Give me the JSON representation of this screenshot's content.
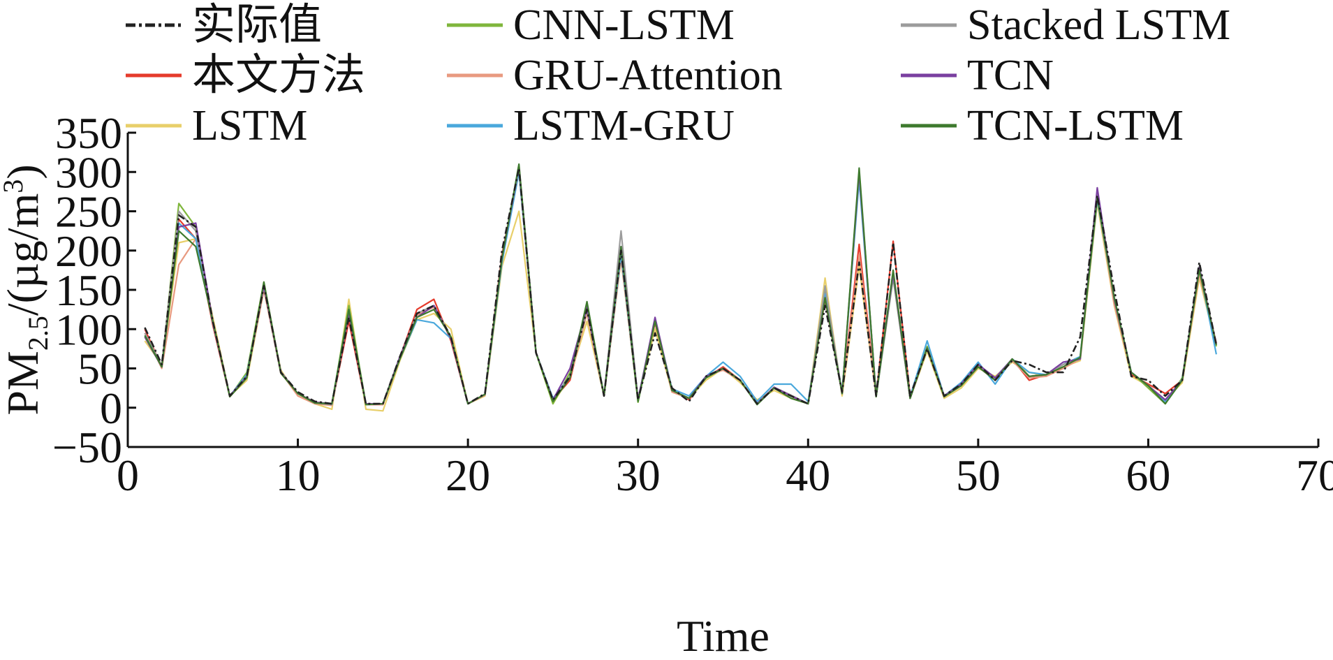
{
  "chart_data": {
    "type": "line",
    "xlabel": "Time",
    "ylabel_main": "PM",
    "ylabel_sub": "2.5",
    "ylabel_unit": "/(µg/m",
    "ylabel_sup": "3",
    "ylabel_close": ")",
    "xlim": [
      0,
      70
    ],
    "ylim": [
      -50,
      350
    ],
    "xticks": [
      0,
      10,
      20,
      30,
      40,
      50,
      60,
      70
    ],
    "xtick_labels": [
      "0",
      "10",
      "20",
      "30",
      "40",
      "50",
      "60",
      "70"
    ],
    "yticks": [
      -50,
      0,
      50,
      100,
      150,
      200,
      250,
      300,
      350
    ],
    "ytick_labels": [
      "−50",
      "0",
      "50",
      "100",
      "150",
      "200",
      "250",
      "300",
      "350"
    ],
    "grid": false,
    "legend_position": "top",
    "x": [
      1,
      2,
      3,
      4,
      5,
      6,
      7,
      8,
      9,
      10,
      11,
      12,
      13,
      14,
      15,
      16,
      17,
      18,
      19,
      20,
      21,
      22,
      23,
      24,
      25,
      26,
      27,
      28,
      29,
      30,
      31,
      32,
      33,
      34,
      35,
      36,
      37,
      38,
      39,
      40,
      41,
      42,
      43,
      44,
      45,
      46,
      47,
      48,
      49,
      50,
      51,
      52,
      53,
      54,
      55,
      56,
      57,
      58,
      59,
      60,
      61,
      62,
      63,
      64
    ],
    "series": [
      {
        "name": "实际值",
        "color": "#222222",
        "dashed": true,
        "values": [
          102,
          55,
          245,
          230,
          110,
          15,
          40,
          155,
          45,
          20,
          8,
          5,
          115,
          5,
          5,
          65,
          120,
          130,
          90,
          5,
          18,
          200,
          305,
          70,
          10,
          40,
          125,
          15,
          200,
          10,
          95,
          25,
          8,
          40,
          50,
          35,
          5,
          25,
          15,
          5,
          130,
          20,
          185,
          15,
          210,
          15,
          75,
          15,
          30,
          55,
          35,
          60,
          55,
          45,
          45,
          90,
          270,
          150,
          40,
          35,
          15,
          35,
          185,
          80
        ]
      },
      {
        "name": "本文方法",
        "color": "#e53b2c",
        "values": [
          100,
          52,
          240,
          215,
          105,
          14,
          40,
          152,
          44,
          18,
          6,
          4,
          110,
          4,
          4,
          64,
          125,
          138,
          85,
          5,
          17,
          195,
          302,
          70,
          10,
          35,
          122,
          15,
          192,
          10,
          108,
          22,
          10,
          38,
          52,
          35,
          5,
          26,
          15,
          5,
          138,
          18,
          208,
          15,
          212,
          15,
          75,
          15,
          28,
          52,
          35,
          62,
          35,
          42,
          55,
          62,
          265,
          140,
          42,
          30,
          18,
          35,
          175,
          82
        ]
      },
      {
        "name": "LSTM",
        "color": "#e8cf6a",
        "values": [
          85,
          55,
          210,
          215,
          115,
          15,
          35,
          150,
          48,
          15,
          5,
          -2,
          138,
          -2,
          -4,
          60,
          112,
          120,
          100,
          5,
          15,
          180,
          250,
          70,
          5,
          40,
          110,
          15,
          188,
          10,
          100,
          20,
          12,
          35,
          50,
          32,
          10,
          22,
          12,
          5,
          165,
          15,
          180,
          15,
          170,
          12,
          72,
          12,
          25,
          50,
          40,
          58,
          45,
          40,
          52,
          60,
          260,
          130,
          40,
          28,
          10,
          32,
          165,
          78
        ]
      },
      {
        "name": "CNN-LSTM",
        "color": "#7fb63c",
        "values": [
          90,
          52,
          260,
          230,
          110,
          14,
          45,
          160,
          45,
          18,
          7,
          5,
          130,
          5,
          5,
          65,
          115,
          130,
          90,
          5,
          17,
          190,
          308,
          70,
          5,
          45,
          130,
          15,
          195,
          7,
          110,
          22,
          12,
          38,
          50,
          35,
          5,
          25,
          15,
          5,
          150,
          18,
          295,
          14,
          165,
          12,
          78,
          15,
          30,
          55,
          35,
          62,
          40,
          42,
          55,
          65,
          270,
          138,
          45,
          25,
          5,
          38,
          175,
          78
        ]
      },
      {
        "name": "GRU-Attention",
        "color": "#e89a80",
        "values": [
          95,
          50,
          182,
          215,
          110,
          15,
          40,
          150,
          45,
          15,
          5,
          3,
          120,
          4,
          4,
          62,
          118,
          128,
          90,
          5,
          16,
          188,
          300,
          70,
          10,
          38,
          120,
          15,
          190,
          10,
          110,
          20,
          12,
          40,
          48,
          35,
          5,
          25,
          15,
          5,
          140,
          18,
          195,
          15,
          170,
          12,
          76,
          14,
          28,
          52,
          38,
          60,
          38,
          40,
          50,
          62,
          268,
          132,
          45,
          28,
          10,
          35,
          170,
          80
        ]
      },
      {
        "name": "LSTM-GRU",
        "color": "#4aa8dc",
        "values": [
          92,
          52,
          235,
          215,
          108,
          15,
          42,
          155,
          45,
          18,
          6,
          5,
          125,
          4,
          5,
          62,
          112,
          108,
          88,
          5,
          17,
          185,
          300,
          70,
          12,
          40,
          128,
          16,
          195,
          10,
          112,
          24,
          15,
          40,
          58,
          40,
          8,
          30,
          30,
          8,
          145,
          20,
          290,
          15,
          168,
          14,
          85,
          15,
          32,
          58,
          30,
          62,
          45,
          42,
          55,
          65,
          265,
          140,
          45,
          28,
          8,
          36,
          178,
          68
        ]
      },
      {
        "name": "Stacked LSTM",
        "color": "#9c9c9c",
        "values": [
          95,
          54,
          250,
          225,
          110,
          14,
          38,
          155,
          46,
          18,
          6,
          4,
          122,
          4,
          5,
          62,
          120,
          130,
          90,
          5,
          17,
          192,
          305,
          70,
          10,
          40,
          125,
          15,
          225,
          10,
          112,
          22,
          12,
          38,
          50,
          35,
          5,
          26,
          16,
          5,
          155,
          18,
          300,
          15,
          168,
          12,
          76,
          15,
          30,
          55,
          38,
          62,
          40,
          42,
          55,
          62,
          272,
          138,
          45,
          28,
          10,
          35,
          180,
          80
        ]
      },
      {
        "name": "TCN",
        "color": "#7a3fa0",
        "values": [
          90,
          52,
          230,
          235,
          110,
          15,
          40,
          155,
          45,
          18,
          7,
          5,
          120,
          5,
          5,
          65,
          115,
          130,
          88,
          5,
          17,
          190,
          308,
          70,
          10,
          50,
          128,
          15,
          205,
          10,
          115,
          22,
          12,
          40,
          50,
          35,
          5,
          26,
          15,
          5,
          140,
          18,
          300,
          15,
          170,
          12,
          76,
          15,
          30,
          55,
          38,
          62,
          40,
          42,
          58,
          62,
          280,
          138,
          45,
          28,
          10,
          35,
          178,
          80
        ]
      },
      {
        "name": "TCN-LSTM",
        "color": "#3e7a2e",
        "values": [
          92,
          52,
          225,
          205,
          110,
          14,
          38,
          160,
          44,
          18,
          6,
          5,
          125,
          4,
          5,
          62,
          115,
          125,
          90,
          5,
          17,
          190,
          310,
          70,
          8,
          38,
          135,
          15,
          205,
          8,
          110,
          22,
          12,
          38,
          50,
          35,
          4,
          25,
          12,
          5,
          140,
          18,
          305,
          14,
          175,
          12,
          76,
          14,
          28,
          52,
          35,
          62,
          40,
          42,
          52,
          64,
          268,
          140,
          45,
          28,
          5,
          35,
          175,
          80
        ]
      }
    ]
  }
}
